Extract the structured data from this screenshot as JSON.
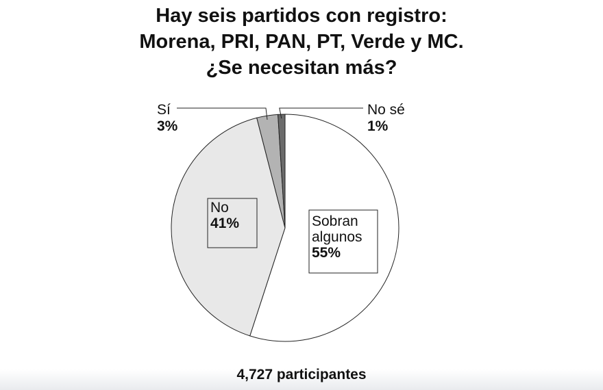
{
  "chart_data": {
    "type": "pie",
    "title_lines": [
      "Hay seis partidos con registro:",
      "Morena, PRI, PAN, PT, Verde y MC.",
      "¿Se necesitan más?"
    ],
    "slices": [
      {
        "label": "Sobran algunos",
        "label_lines": [
          "Sobran",
          "algunos"
        ],
        "value": 55,
        "value_label": "55%",
        "color": "#ffffff"
      },
      {
        "label": "No",
        "label_lines": [
          "No"
        ],
        "value": 41,
        "value_label": "41%",
        "color": "#e8e8e8"
      },
      {
        "label": "Sí",
        "label_lines": [
          "Sí"
        ],
        "value": 3,
        "value_label": "3%",
        "color": "#b3b3b3"
      },
      {
        "label": "No sé",
        "label_lines": [
          "No sé"
        ],
        "value": 1,
        "value_label": "1%",
        "color": "#6b6b6b"
      }
    ],
    "footer": "4,727 participantes"
  }
}
